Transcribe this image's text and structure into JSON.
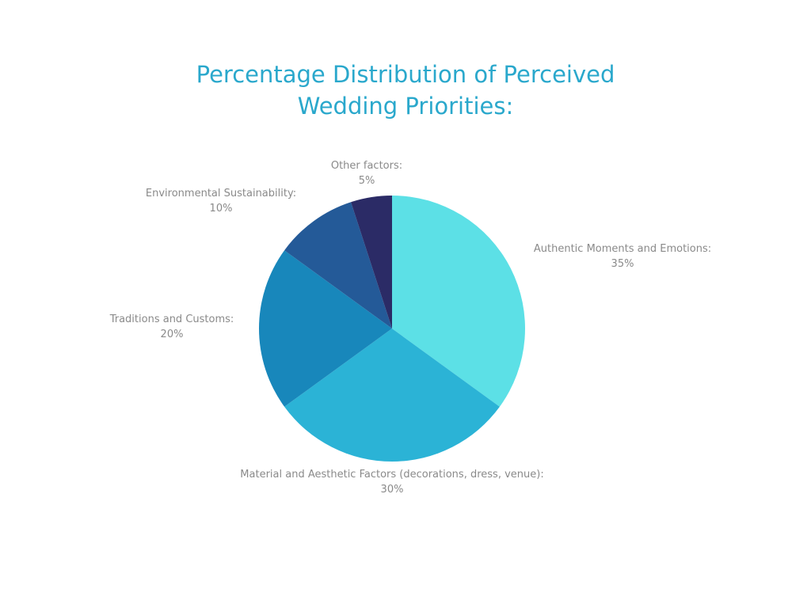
{
  "chart_data": {
    "type": "pie",
    "title_lines": [
      "Percentage Distribution of Perceived",
      "Wedding Priorities:"
    ],
    "slices": [
      {
        "label": "Authentic Moments and Emotions:",
        "value_label": "35%",
        "value": 35,
        "color": "#5ce0e6"
      },
      {
        "label": "Material and Aesthetic Factors (decorations, dress, venue):",
        "value_label": "30%",
        "value": 30,
        "color": "#2bb3d6"
      },
      {
        "label": "Traditions and Customs:",
        "value_label": "20%",
        "value": 20,
        "color": "#1887bb"
      },
      {
        "label": "Environmental Sustainability:",
        "value_label": "10%",
        "value": 10,
        "color": "#245a98"
      },
      {
        "label": "Other factors:",
        "value_label": "5%",
        "value": 5,
        "color": "#2b2b66"
      }
    ],
    "start": "12 o'clock",
    "direction": "clockwise",
    "label_color": "#8a8a8a",
    "title_color": "#2aa8cc"
  }
}
